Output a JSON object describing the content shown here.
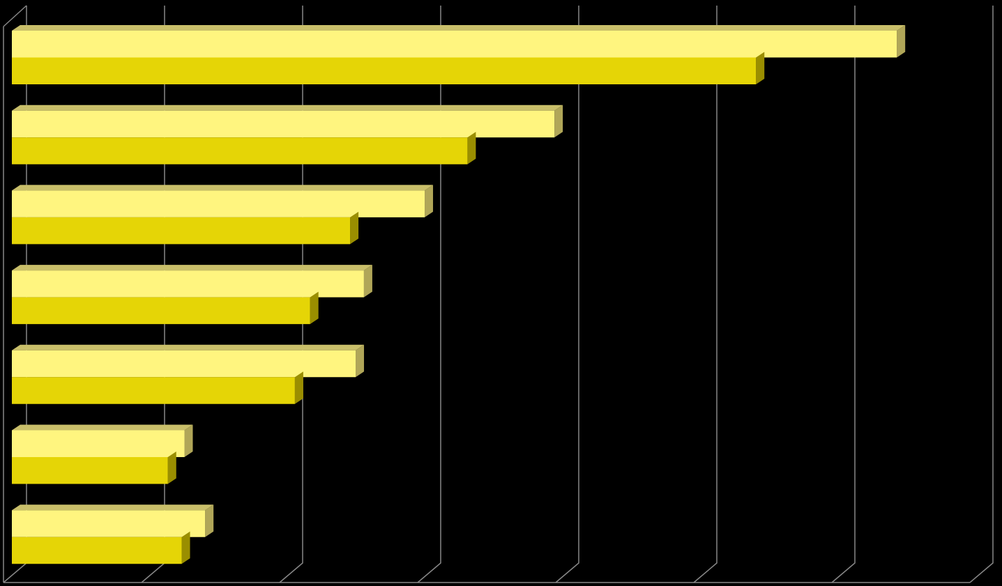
{
  "chart_data": {
    "type": "bar",
    "orientation": "horizontal",
    "three_d": true,
    "categories": [
      null,
      null,
      null,
      null,
      null,
      null,
      null
    ],
    "series": [
      {
        "color": "#fff57f",
        "values": [
          6.41,
          3.93,
          2.99,
          2.55,
          2.49,
          1.25,
          1.4
        ]
      },
      {
        "color": "#e5d506",
        "values": [
          5.39,
          3.3,
          2.45,
          2.16,
          2.05,
          1.13,
          1.23
        ]
      }
    ],
    "xlim": [
      0,
      7
    ],
    "xticks": [
      0,
      1,
      2,
      3,
      4,
      5,
      6,
      7
    ],
    "grid": true
  }
}
